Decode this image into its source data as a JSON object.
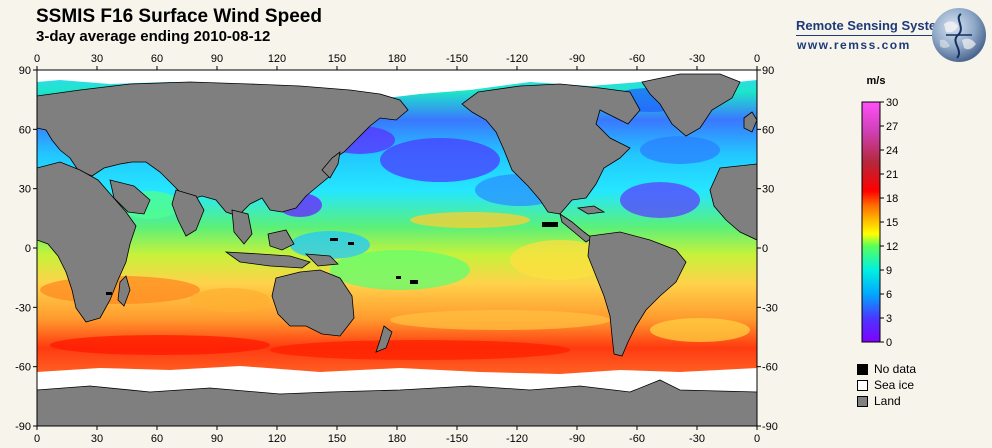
{
  "header": {
    "title": "SSMIS F16 Surface Wind Speed",
    "subtitle": "3-day average ending 2010-08-12"
  },
  "logo": {
    "name": "Remote Sensing Systems",
    "url": "www.remss.com"
  },
  "map": {
    "top_axis_labels": [
      "0",
      "30",
      "60",
      "90",
      "120",
      "150",
      "180",
      "-150",
      "-120",
      "-90",
      "-60",
      "-30",
      "0"
    ],
    "bottom_axis_labels": [
      "0",
      "30",
      "60",
      "90",
      "120",
      "150",
      "180",
      "-150",
      "-120",
      "-90",
      "-60",
      "-30",
      "0"
    ],
    "left_axis_labels": [
      "90",
      "60",
      "30",
      "0",
      "-30",
      "-60",
      "-90"
    ],
    "right_axis_labels": [
      "90",
      "60",
      "30",
      "0",
      "-30",
      "-60",
      "-90"
    ],
    "colors": {
      "land": "#7f7f7f",
      "sea_ice": "#ffffff",
      "no_data": "#000000"
    }
  },
  "colorbar": {
    "units": "m/s",
    "tick_labels": [
      "30",
      "27",
      "24",
      "21",
      "18",
      "15",
      "12",
      "9",
      "6",
      "3",
      "0"
    ],
    "colors": [
      "#ff4df5",
      "#d8388f",
      "#b0302a",
      "#ff0000",
      "#ff8000",
      "#ffd000",
      "#ffff00",
      "#00ff60",
      "#00d8ff",
      "#0070ff",
      "#8000ff"
    ]
  },
  "legend": {
    "items": [
      {
        "label": "No data",
        "color": "#000000"
      },
      {
        "label": "Sea ice",
        "color": "#ffffff"
      },
      {
        "label": "Land",
        "color": "#808080"
      }
    ]
  }
}
